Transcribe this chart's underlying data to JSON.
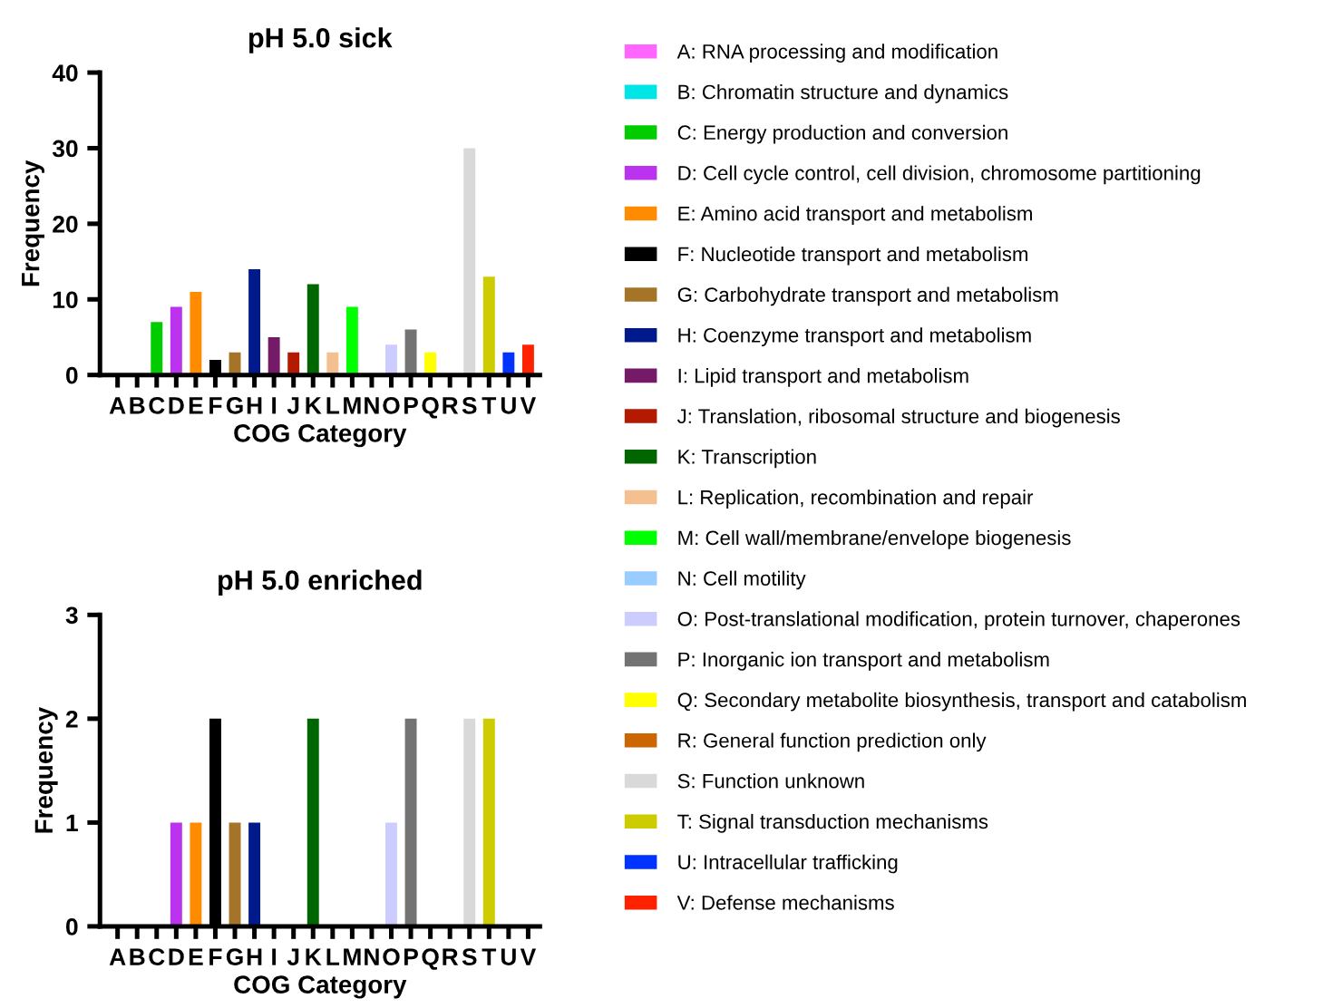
{
  "chart_data": [
    {
      "type": "bar",
      "title": "pH 5.0 sick",
      "xlabel": "COG Category",
      "ylabel": "Frequency",
      "categories": [
        "A",
        "B",
        "C",
        "D",
        "E",
        "F",
        "G",
        "H",
        "I",
        "J",
        "K",
        "L",
        "M",
        "N",
        "O",
        "P",
        "Q",
        "R",
        "S",
        "T",
        "U",
        "V"
      ],
      "ylim": [
        0,
        40
      ],
      "yticks": [
        0,
        10,
        20,
        30,
        40
      ],
      "grid": false,
      "legend": "right",
      "series": [
        {
          "name": "A: RNA processing and modification",
          "color": "#ff66ff",
          "values": [
            0,
            null,
            null,
            null,
            null,
            null,
            null,
            null,
            null,
            null,
            null,
            null,
            null,
            null,
            null,
            null,
            null,
            null,
            null,
            null,
            null,
            null
          ]
        },
        {
          "name": "B: Chromatin structure and dynamics",
          "color": "#00e5e5",
          "values": [
            null,
            0,
            null,
            null,
            null,
            null,
            null,
            null,
            null,
            null,
            null,
            null,
            null,
            null,
            null,
            null,
            null,
            null,
            null,
            null,
            null,
            null
          ]
        },
        {
          "name": "C: Energy production and conversion",
          "color": "#00cc00",
          "values": [
            null,
            null,
            7,
            null,
            null,
            null,
            null,
            null,
            null,
            null,
            null,
            null,
            null,
            null,
            null,
            null,
            null,
            null,
            null,
            null,
            null,
            null
          ]
        },
        {
          "name": "D: Cell cycle control, cell division, chromosome partitioning",
          "color": "#bb33ee",
          "values": [
            null,
            null,
            null,
            9,
            null,
            null,
            null,
            null,
            null,
            null,
            null,
            null,
            null,
            null,
            null,
            null,
            null,
            null,
            null,
            null,
            null,
            null
          ]
        },
        {
          "name": "E: Amino acid transport and metabolism",
          "color": "#ff8c00",
          "values": [
            null,
            null,
            null,
            null,
            11,
            null,
            null,
            null,
            null,
            null,
            null,
            null,
            null,
            null,
            null,
            null,
            null,
            null,
            null,
            null,
            null,
            null
          ]
        },
        {
          "name": "F: Nucleotide transport and metabolism",
          "color": "#000000",
          "values": [
            null,
            null,
            null,
            null,
            null,
            2,
            null,
            null,
            null,
            null,
            null,
            null,
            null,
            null,
            null,
            null,
            null,
            null,
            null,
            null,
            null,
            null
          ]
        },
        {
          "name": "G: Carbohydrate transport and metabolism",
          "color": "#a67428",
          "values": [
            null,
            null,
            null,
            null,
            null,
            null,
            3,
            null,
            null,
            null,
            null,
            null,
            null,
            null,
            null,
            null,
            null,
            null,
            null,
            null,
            null,
            null
          ]
        },
        {
          "name": "H: Coenzyme transport and metabolism",
          "color": "#001a8c",
          "values": [
            null,
            null,
            null,
            null,
            null,
            null,
            null,
            14,
            null,
            null,
            null,
            null,
            null,
            null,
            null,
            null,
            null,
            null,
            null,
            null,
            null,
            null
          ]
        },
        {
          "name": "I: Lipid transport and metabolism",
          "color": "#751a66",
          "values": [
            null,
            null,
            null,
            null,
            null,
            null,
            null,
            null,
            5,
            null,
            null,
            null,
            null,
            null,
            null,
            null,
            null,
            null,
            null,
            null,
            null,
            null
          ]
        },
        {
          "name": "J: Translation, ribosomal structure and biogenesis",
          "color": "#b31a00",
          "values": [
            null,
            null,
            null,
            null,
            null,
            null,
            null,
            null,
            null,
            3,
            null,
            null,
            null,
            null,
            null,
            null,
            null,
            null,
            null,
            null,
            null,
            null
          ]
        },
        {
          "name": "K: Transcription",
          "color": "#006600",
          "values": [
            null,
            null,
            null,
            null,
            null,
            null,
            null,
            null,
            null,
            null,
            12,
            null,
            null,
            null,
            null,
            null,
            null,
            null,
            null,
            null,
            null,
            null
          ]
        },
        {
          "name": "L: Replication, recombination and repair",
          "color": "#f5c08f",
          "values": [
            null,
            null,
            null,
            null,
            null,
            null,
            null,
            null,
            null,
            null,
            null,
            3,
            null,
            null,
            null,
            null,
            null,
            null,
            null,
            null,
            null,
            null
          ]
        },
        {
          "name": "M: Cell wall/membrane/envelope biogenesis",
          "color": "#00ff00",
          "values": [
            null,
            null,
            null,
            null,
            null,
            null,
            null,
            null,
            null,
            null,
            null,
            null,
            9,
            null,
            null,
            null,
            null,
            null,
            null,
            null,
            null,
            null
          ]
        },
        {
          "name": "N: Cell motility",
          "color": "#99ccff",
          "values": [
            null,
            null,
            null,
            null,
            null,
            null,
            null,
            null,
            null,
            null,
            null,
            null,
            null,
            0,
            null,
            null,
            null,
            null,
            null,
            null,
            null,
            null
          ]
        },
        {
          "name": "O: Post-translational modification, protein turnover, chaperones",
          "color": "#ccccff",
          "values": [
            null,
            null,
            null,
            null,
            null,
            null,
            null,
            null,
            null,
            null,
            null,
            null,
            null,
            null,
            4,
            null,
            null,
            null,
            null,
            null,
            null,
            null
          ]
        },
        {
          "name": "P: Inorganic ion transport and metabolism",
          "color": "#737373",
          "values": [
            null,
            null,
            null,
            null,
            null,
            null,
            null,
            null,
            null,
            null,
            null,
            null,
            null,
            null,
            null,
            6,
            null,
            null,
            null,
            null,
            null,
            null
          ]
        },
        {
          "name": "Q: Secondary metabolite biosynthesis, transport and catabolism",
          "color": "#ffff00",
          "values": [
            null,
            null,
            null,
            null,
            null,
            null,
            null,
            null,
            null,
            null,
            null,
            null,
            null,
            null,
            null,
            null,
            3,
            null,
            null,
            null,
            null,
            null
          ]
        },
        {
          "name": "R: General function prediction only",
          "color": "#cc6600",
          "values": [
            null,
            null,
            null,
            null,
            null,
            null,
            null,
            null,
            null,
            null,
            null,
            null,
            null,
            null,
            null,
            null,
            null,
            0,
            null,
            null,
            null,
            null
          ]
        },
        {
          "name": "S: Function unknown",
          "color": "#d9d9d9",
          "values": [
            null,
            null,
            null,
            null,
            null,
            null,
            null,
            null,
            null,
            null,
            null,
            null,
            null,
            null,
            null,
            null,
            null,
            null,
            30,
            null,
            null,
            null
          ]
        },
        {
          "name": "T: Signal transduction mechanisms",
          "color": "#cccc00",
          "values": [
            null,
            null,
            null,
            null,
            null,
            null,
            null,
            null,
            null,
            null,
            null,
            null,
            null,
            null,
            null,
            null,
            null,
            null,
            null,
            13,
            null,
            null
          ]
        },
        {
          "name": "U: Intracellular trafficking",
          "color": "#0033ff",
          "values": [
            null,
            null,
            null,
            null,
            null,
            null,
            null,
            null,
            null,
            null,
            null,
            null,
            null,
            null,
            null,
            null,
            null,
            null,
            null,
            null,
            3,
            null
          ]
        },
        {
          "name": "V: Defense mechanisms",
          "color": "#ff2200",
          "values": [
            null,
            null,
            null,
            null,
            null,
            null,
            null,
            null,
            null,
            null,
            null,
            null,
            null,
            null,
            null,
            null,
            null,
            null,
            null,
            null,
            null,
            4
          ]
        }
      ]
    },
    {
      "type": "bar",
      "title": "pH 5.0 enriched",
      "xlabel": "COG Category",
      "ylabel": "Frequency",
      "categories": [
        "A",
        "B",
        "C",
        "D",
        "E",
        "F",
        "G",
        "H",
        "I",
        "J",
        "K",
        "L",
        "M",
        "N",
        "O",
        "P",
        "Q",
        "R",
        "S",
        "T",
        "U",
        "V"
      ],
      "ylim": [
        0,
        3
      ],
      "yticks": [
        0,
        1,
        2,
        3
      ],
      "grid": false,
      "colors": [
        "#ff66ff",
        "#00e5e5",
        "#00cc00",
        "#bb33ee",
        "#ff8c00",
        "#000000",
        "#a67428",
        "#001a8c",
        "#751a66",
        "#b31a00",
        "#006600",
        "#f5c08f",
        "#00ff00",
        "#99ccff",
        "#ccccff",
        "#737373",
        "#ffff00",
        "#cc6600",
        "#d9d9d9",
        "#cccc00",
        "#0033ff",
        "#ff2200"
      ],
      "values": [
        0,
        0,
        0,
        1,
        1,
        2,
        1,
        1,
        0,
        0,
        2,
        0,
        0,
        0,
        1,
        2,
        0,
        0,
        2,
        2,
        0,
        0
      ]
    }
  ]
}
